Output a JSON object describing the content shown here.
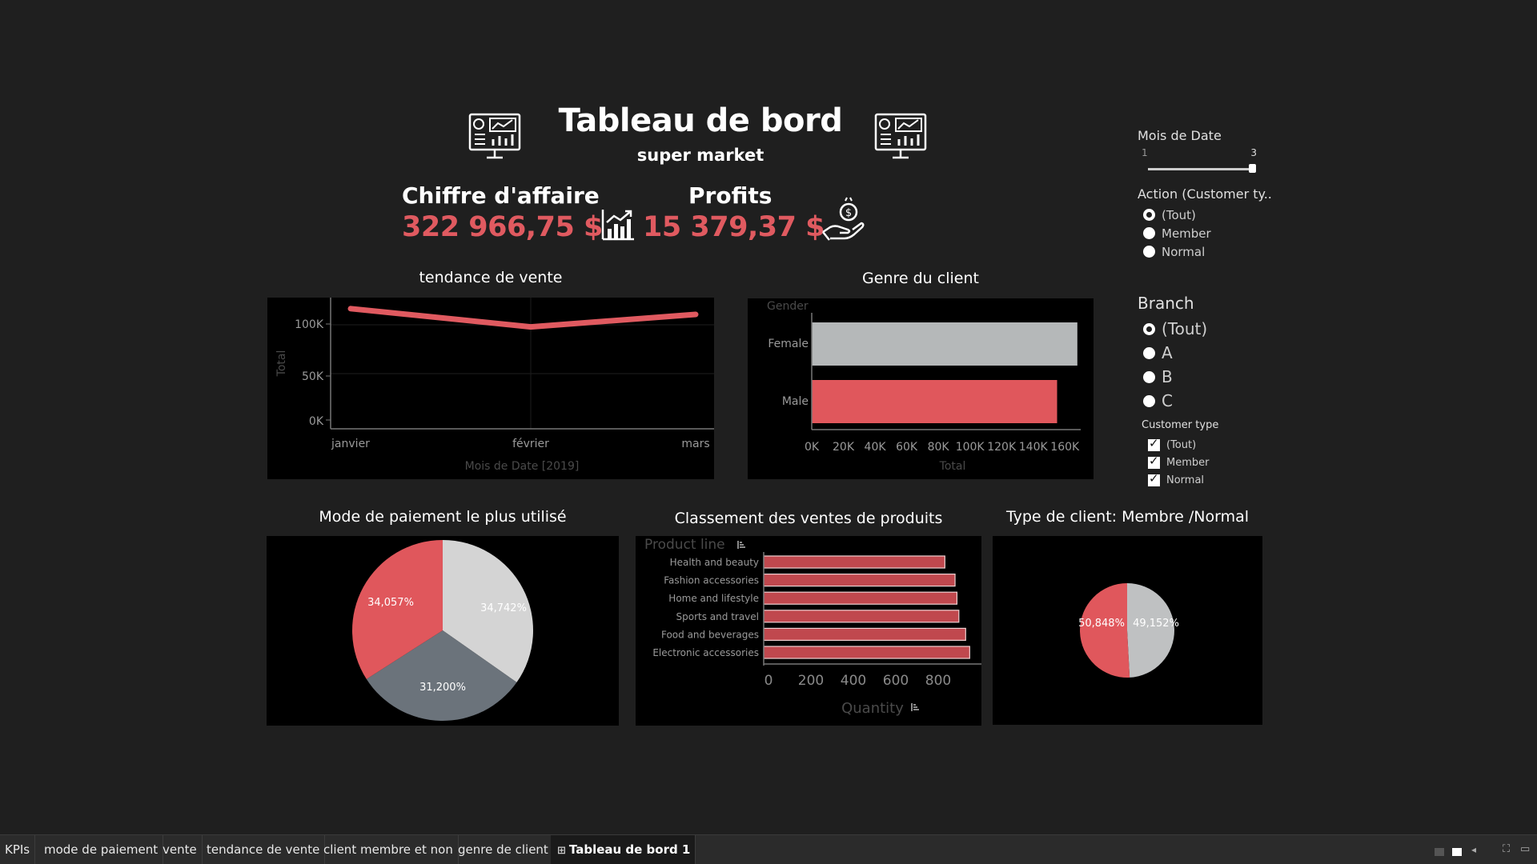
{
  "header": {
    "title": "Tableau de bord",
    "subtitle": "super market",
    "icon_name": "dashboard-monitor-icon"
  },
  "kpis": {
    "revenue_label": "Chiffre d'affaire",
    "revenue_value": "322 966,75 $",
    "revenue_icon": "growth-chart-icon",
    "profit_label": "Profits",
    "profit_value": "15 379,37 $",
    "profit_icon": "money-hand-icon"
  },
  "colors": {
    "background": "#1f1f1f",
    "panel": "#000000",
    "accent_red": "#e05a60",
    "grey_light": "#d4d4d4",
    "grey_dark": "#6b737b"
  },
  "trend_chart": {
    "title": "tendance de vente",
    "ylabel": "Total",
    "xlabel": "Mois de Date [2019]",
    "yticks": [
      "100K",
      "50K",
      "0K"
    ],
    "xticks": [
      "janvier",
      "février",
      "mars"
    ]
  },
  "gender_chart": {
    "title": "Genre du client",
    "header": "Gender",
    "xlabel": "Total",
    "xticks": [
      "0K",
      "20K",
      "40K",
      "60K",
      "80K",
      "100K",
      "120K",
      "140K",
      "160K"
    ]
  },
  "payment_chart": {
    "title": "Mode de paiement le plus utilisé"
  },
  "product_chart": {
    "title": "Classement des ventes de produits",
    "header": "Product line",
    "xlabel": "Quantity",
    "xticks": [
      "0",
      "200",
      "400",
      "600",
      "800"
    ]
  },
  "customer_type_chart": {
    "title": "Type de client: Membre /Normal"
  },
  "chart_data": [
    {
      "type": "line",
      "title": "tendance de vente",
      "xlabel": "Mois de Date [2019]",
      "ylabel": "Total",
      "categories": [
        "janvier",
        "février",
        "mars"
      ],
      "values": [
        116000,
        97000,
        110000
      ],
      "ylim": [
        0,
        125000
      ]
    },
    {
      "type": "bar",
      "orientation": "horizontal",
      "title": "Genre du client",
      "xlabel": "Total",
      "categories": [
        "Female",
        "Male"
      ],
      "values": [
        167883,
        155084
      ],
      "colors": [
        "#b5b8b9",
        "#e0575c"
      ],
      "xlim": [
        0,
        170000
      ]
    },
    {
      "type": "pie",
      "title": "Mode de paiement le plus utilisé",
      "slices": [
        {
          "value": 34.742,
          "label": "34,742%",
          "color": "#d4d4d4"
        },
        {
          "value": 31.2,
          "label": "31,200%",
          "color": "#6b737b"
        },
        {
          "value": 34.057,
          "label": "34,057%",
          "color": "#e0575c"
        }
      ]
    },
    {
      "type": "bar",
      "orientation": "horizontal",
      "title": "Classement des ventes de produits",
      "xlabel": "Quantity",
      "categories": [
        "Health and beauty",
        "Fashion accessories",
        "Home and lifestyle",
        "Sports and travel",
        "Food and beverages",
        "Electronic accessories"
      ],
      "values": [
        854,
        902,
        911,
        920,
        952,
        971
      ],
      "xlim": [
        0,
        1000
      ]
    },
    {
      "type": "pie",
      "title": "Type de client: Membre /Normal",
      "slices": [
        {
          "value": 49.152,
          "label": "49,152%",
          "color": "#bfc1c2"
        },
        {
          "value": 50.848,
          "label": "50,848%",
          "color": "#e0575c"
        }
      ]
    }
  ],
  "filters": {
    "month": {
      "title": "Mois de Date",
      "min_label": "1",
      "max_label": "3"
    },
    "action": {
      "title": "Action (Customer ty..",
      "options": [
        "(Tout)",
        "Member",
        "Normal"
      ],
      "selected": 0
    },
    "branch": {
      "title": "Branch",
      "options": [
        "(Tout)",
        "A",
        "B",
        "C"
      ],
      "selected": 0
    },
    "customer_type": {
      "title": "Customer type",
      "options": [
        "(Tout)",
        "Member",
        "Normal"
      ]
    }
  },
  "tabs": [
    "KPIs",
    "mode de paiement",
    "vente",
    "tendance de vente",
    "client membre et non",
    "genre de client",
    "Tableau de bord 1"
  ],
  "active_tab": 6,
  "tab_icon": "dashboard-grid-icon"
}
